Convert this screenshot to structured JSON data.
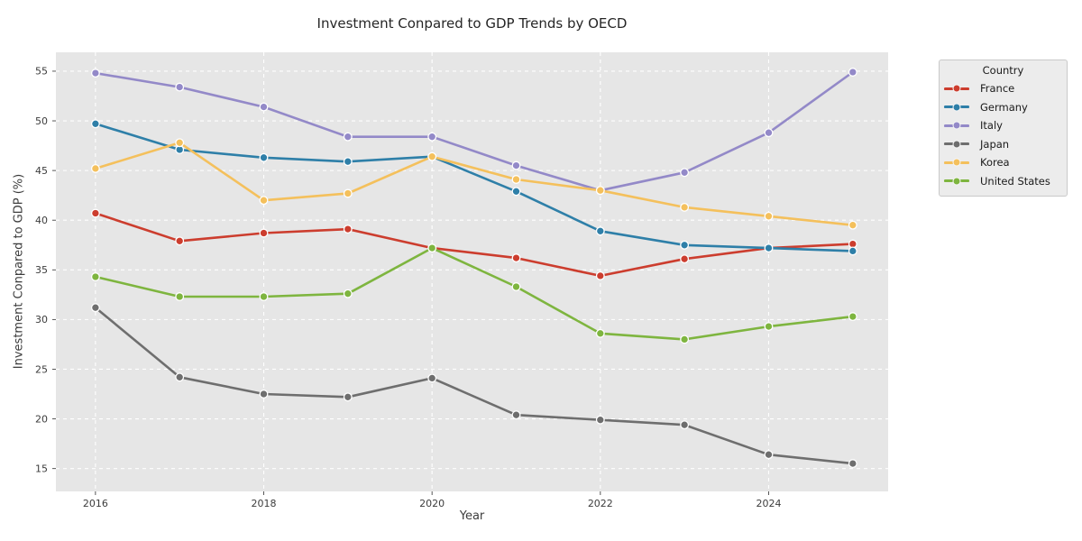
{
  "figure": {
    "background": "#ffffff",
    "plot_background": "#e6e6e6",
    "grid_color": "#ffffff",
    "tick_color": "#3c3c3c",
    "text_color": "#3c3c3c"
  },
  "chart_data": {
    "type": "line",
    "title": "Investment Conpared to GDP Trends by OECD",
    "xlabel": "Year",
    "ylabel": "Investment Conpared to GDP (%)",
    "legend_title": "Country",
    "legend_position": "upper right outside",
    "grid": true,
    "x": [
      2016,
      2017,
      2018,
      2019,
      2020,
      2021,
      2022,
      2023,
      2024,
      2025
    ],
    "xticks": [
      2016,
      2018,
      2020,
      2022,
      2024
    ],
    "yticks": [
      15,
      20,
      25,
      30,
      35,
      40,
      45,
      50,
      55
    ],
    "xlim": [
      2015.53,
      2025.42
    ],
    "ylim": [
      12.7,
      56.9
    ],
    "series": [
      {
        "name": "France",
        "color": "#cc3d2e",
        "values": [
          40.7,
          37.9,
          38.7,
          39.1,
          37.2,
          36.2,
          34.4,
          36.1,
          37.2,
          37.6
        ]
      },
      {
        "name": "Germany",
        "color": "#2e7fa8",
        "values": [
          49.7,
          47.1,
          46.3,
          45.9,
          46.4,
          42.9,
          38.9,
          37.5,
          37.2,
          36.9
        ]
      },
      {
        "name": "Italy",
        "color": "#9389c8",
        "values": [
          54.8,
          53.4,
          51.4,
          48.4,
          48.4,
          45.5,
          43.0,
          44.8,
          48.8,
          54.9
        ]
      },
      {
        "name": "Japan",
        "color": "#6e6e6e",
        "values": [
          31.2,
          24.2,
          22.5,
          22.2,
          24.1,
          20.4,
          19.9,
          19.4,
          16.4,
          15.5
        ]
      },
      {
        "name": "Korea",
        "color": "#f4c05c",
        "values": [
          45.2,
          47.8,
          42.0,
          42.7,
          46.4,
          44.1,
          43.0,
          41.3,
          40.4,
          39.5
        ]
      },
      {
        "name": "United States",
        "color": "#7eb53f",
        "values": [
          34.3,
          32.3,
          32.3,
          32.6,
          37.2,
          33.3,
          28.6,
          28.0,
          29.3,
          30.3
        ]
      }
    ]
  }
}
